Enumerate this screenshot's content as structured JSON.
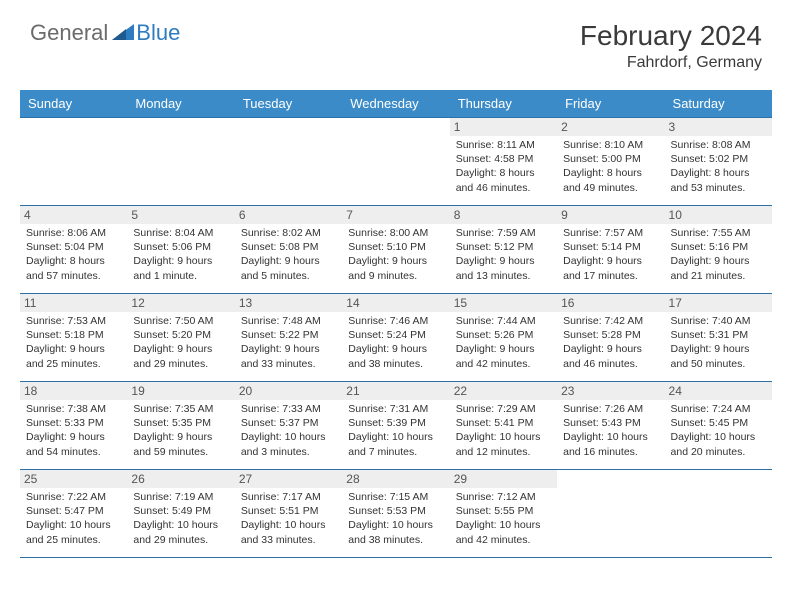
{
  "logo": {
    "general": "General",
    "blue": "Blue"
  },
  "title": {
    "month": "February 2024",
    "location": "Fahrdorf, Germany"
  },
  "colors": {
    "header_bg": "#3b8bc8",
    "header_text": "#ffffff",
    "border": "#2f6fa8",
    "daynum_bg": "#eeeeee",
    "text": "#333333",
    "logo_gray": "#6b6b6b",
    "logo_blue": "#2f7bbf"
  },
  "day_headers": [
    "Sunday",
    "Monday",
    "Tuesday",
    "Wednesday",
    "Thursday",
    "Friday",
    "Saturday"
  ],
  "weeks": [
    [
      {
        "empty": true
      },
      {
        "empty": true
      },
      {
        "empty": true
      },
      {
        "empty": true
      },
      {
        "num": "1",
        "sunrise": "Sunrise: 8:11 AM",
        "sunset": "Sunset: 4:58 PM",
        "daylight": "Daylight: 8 hours and 46 minutes."
      },
      {
        "num": "2",
        "sunrise": "Sunrise: 8:10 AM",
        "sunset": "Sunset: 5:00 PM",
        "daylight": "Daylight: 8 hours and 49 minutes."
      },
      {
        "num": "3",
        "sunrise": "Sunrise: 8:08 AM",
        "sunset": "Sunset: 5:02 PM",
        "daylight": "Daylight: 8 hours and 53 minutes."
      }
    ],
    [
      {
        "num": "4",
        "sunrise": "Sunrise: 8:06 AM",
        "sunset": "Sunset: 5:04 PM",
        "daylight": "Daylight: 8 hours and 57 minutes."
      },
      {
        "num": "5",
        "sunrise": "Sunrise: 8:04 AM",
        "sunset": "Sunset: 5:06 PM",
        "daylight": "Daylight: 9 hours and 1 minute."
      },
      {
        "num": "6",
        "sunrise": "Sunrise: 8:02 AM",
        "sunset": "Sunset: 5:08 PM",
        "daylight": "Daylight: 9 hours and 5 minutes."
      },
      {
        "num": "7",
        "sunrise": "Sunrise: 8:00 AM",
        "sunset": "Sunset: 5:10 PM",
        "daylight": "Daylight: 9 hours and 9 minutes."
      },
      {
        "num": "8",
        "sunrise": "Sunrise: 7:59 AM",
        "sunset": "Sunset: 5:12 PM",
        "daylight": "Daylight: 9 hours and 13 minutes."
      },
      {
        "num": "9",
        "sunrise": "Sunrise: 7:57 AM",
        "sunset": "Sunset: 5:14 PM",
        "daylight": "Daylight: 9 hours and 17 minutes."
      },
      {
        "num": "10",
        "sunrise": "Sunrise: 7:55 AM",
        "sunset": "Sunset: 5:16 PM",
        "daylight": "Daylight: 9 hours and 21 minutes."
      }
    ],
    [
      {
        "num": "11",
        "sunrise": "Sunrise: 7:53 AM",
        "sunset": "Sunset: 5:18 PM",
        "daylight": "Daylight: 9 hours and 25 minutes."
      },
      {
        "num": "12",
        "sunrise": "Sunrise: 7:50 AM",
        "sunset": "Sunset: 5:20 PM",
        "daylight": "Daylight: 9 hours and 29 minutes."
      },
      {
        "num": "13",
        "sunrise": "Sunrise: 7:48 AM",
        "sunset": "Sunset: 5:22 PM",
        "daylight": "Daylight: 9 hours and 33 minutes."
      },
      {
        "num": "14",
        "sunrise": "Sunrise: 7:46 AM",
        "sunset": "Sunset: 5:24 PM",
        "daylight": "Daylight: 9 hours and 38 minutes."
      },
      {
        "num": "15",
        "sunrise": "Sunrise: 7:44 AM",
        "sunset": "Sunset: 5:26 PM",
        "daylight": "Daylight: 9 hours and 42 minutes."
      },
      {
        "num": "16",
        "sunrise": "Sunrise: 7:42 AM",
        "sunset": "Sunset: 5:28 PM",
        "daylight": "Daylight: 9 hours and 46 minutes."
      },
      {
        "num": "17",
        "sunrise": "Sunrise: 7:40 AM",
        "sunset": "Sunset: 5:31 PM",
        "daylight": "Daylight: 9 hours and 50 minutes."
      }
    ],
    [
      {
        "num": "18",
        "sunrise": "Sunrise: 7:38 AM",
        "sunset": "Sunset: 5:33 PM",
        "daylight": "Daylight: 9 hours and 54 minutes."
      },
      {
        "num": "19",
        "sunrise": "Sunrise: 7:35 AM",
        "sunset": "Sunset: 5:35 PM",
        "daylight": "Daylight: 9 hours and 59 minutes."
      },
      {
        "num": "20",
        "sunrise": "Sunrise: 7:33 AM",
        "sunset": "Sunset: 5:37 PM",
        "daylight": "Daylight: 10 hours and 3 minutes."
      },
      {
        "num": "21",
        "sunrise": "Sunrise: 7:31 AM",
        "sunset": "Sunset: 5:39 PM",
        "daylight": "Daylight: 10 hours and 7 minutes."
      },
      {
        "num": "22",
        "sunrise": "Sunrise: 7:29 AM",
        "sunset": "Sunset: 5:41 PM",
        "daylight": "Daylight: 10 hours and 12 minutes."
      },
      {
        "num": "23",
        "sunrise": "Sunrise: 7:26 AM",
        "sunset": "Sunset: 5:43 PM",
        "daylight": "Daylight: 10 hours and 16 minutes."
      },
      {
        "num": "24",
        "sunrise": "Sunrise: 7:24 AM",
        "sunset": "Sunset: 5:45 PM",
        "daylight": "Daylight: 10 hours and 20 minutes."
      }
    ],
    [
      {
        "num": "25",
        "sunrise": "Sunrise: 7:22 AM",
        "sunset": "Sunset: 5:47 PM",
        "daylight": "Daylight: 10 hours and 25 minutes."
      },
      {
        "num": "26",
        "sunrise": "Sunrise: 7:19 AM",
        "sunset": "Sunset: 5:49 PM",
        "daylight": "Daylight: 10 hours and 29 minutes."
      },
      {
        "num": "27",
        "sunrise": "Sunrise: 7:17 AM",
        "sunset": "Sunset: 5:51 PM",
        "daylight": "Daylight: 10 hours and 33 minutes."
      },
      {
        "num": "28",
        "sunrise": "Sunrise: 7:15 AM",
        "sunset": "Sunset: 5:53 PM",
        "daylight": "Daylight: 10 hours and 38 minutes."
      },
      {
        "num": "29",
        "sunrise": "Sunrise: 7:12 AM",
        "sunset": "Sunset: 5:55 PM",
        "daylight": "Daylight: 10 hours and 42 minutes."
      },
      {
        "empty": true
      },
      {
        "empty": true
      }
    ]
  ]
}
